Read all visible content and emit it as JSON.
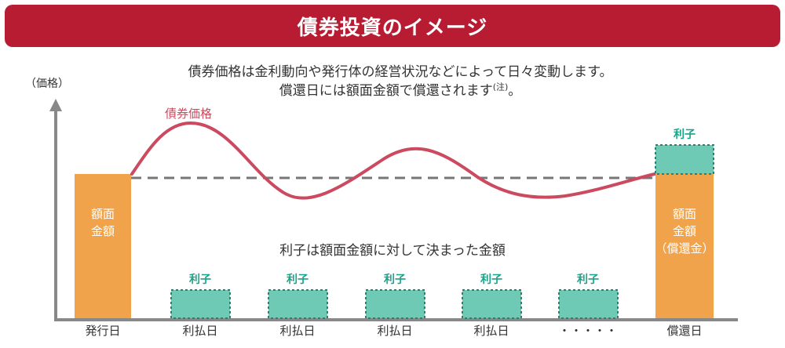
{
  "banner": {
    "title": "債券投資のイメージ",
    "color": "#b81c33"
  },
  "description": {
    "line1": "債券価格は金利動向や発行体の経営状況などによって日々変動します。",
    "line2": "償還日には額面金額で償還されます",
    "note_mark": "(注)",
    "line2_end": "。"
  },
  "y_axis_label": "（価格）",
  "price_line_label": "債券価格",
  "interest_note": "利子は額面金額に対して決まった金額",
  "face_value_bar": {
    "line1": "額面",
    "line2": "金額"
  },
  "redemption_bar": {
    "line1": "額面",
    "line2": "金額",
    "line3": "（償還金）"
  },
  "coupon_label": "利子",
  "x_labels": [
    "発行日",
    "利払日",
    "利払日",
    "利払日",
    "利払日",
    "・・・・・",
    "償還日"
  ],
  "colors": {
    "banner": "#b81c33",
    "orange_bar": "#f0a34b",
    "teal_box": "#6fcab5",
    "teal_text": "#19a389",
    "price_line": "#cc4a60",
    "dashed_line": "#777777",
    "axis": "#888888"
  }
}
